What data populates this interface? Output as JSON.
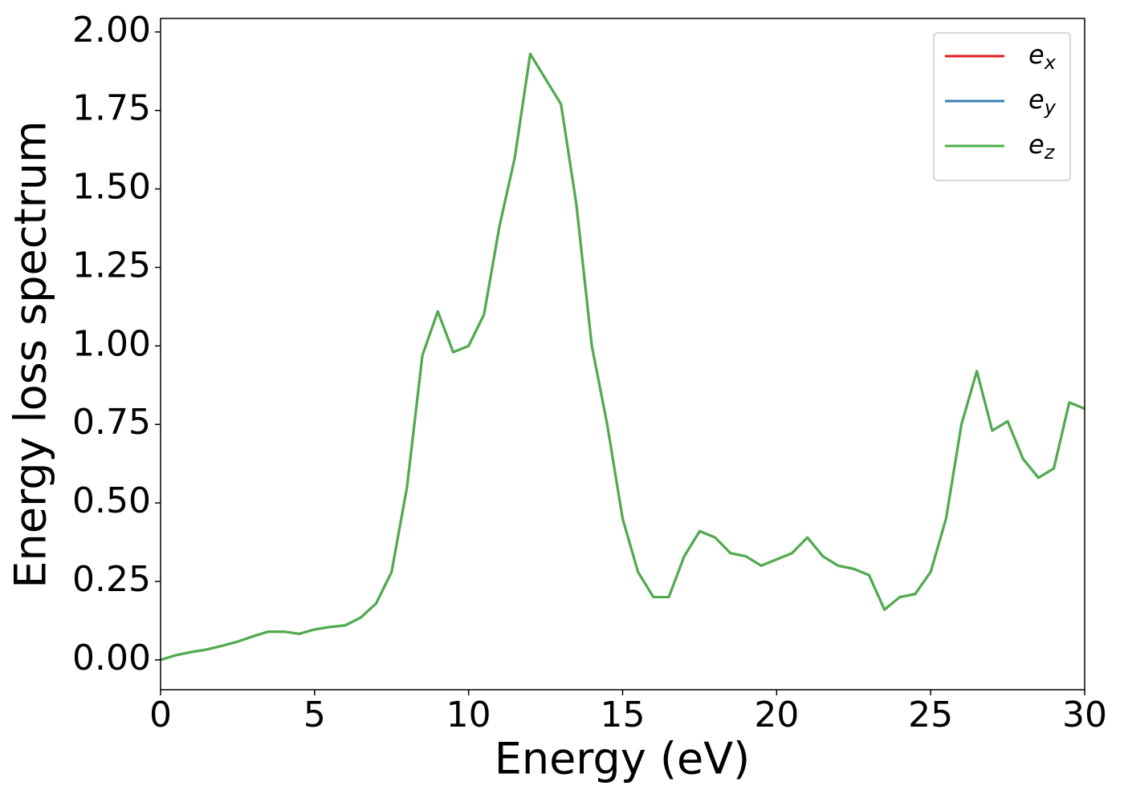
{
  "chart_data": {
    "type": "line",
    "xlabel": "Energy (eV)",
    "ylabel": "Energy loss spectrum",
    "x": [
      0,
      0.5,
      1,
      1.5,
      2,
      2.5,
      3,
      3.5,
      4,
      4.5,
      5,
      5.5,
      6,
      6.5,
      7,
      7.5,
      8,
      8.5,
      9,
      9.5,
      10,
      10.5,
      11,
      11.5,
      12,
      12.5,
      13,
      13.5,
      14,
      14.5,
      15,
      15.5,
      16,
      16.5,
      17,
      17.5,
      18,
      18.5,
      19,
      19.5,
      20,
      20.5,
      21,
      21.5,
      22,
      22.5,
      23,
      23.5,
      24,
      24.5,
      25,
      25.5,
      26,
      26.5,
      27,
      27.5,
      28,
      28.5,
      29,
      29.5,
      30
    ],
    "series": [
      {
        "name": "ex",
        "color": "#e41a1c",
        "values": [
          0,
          0.015,
          0.025,
          0.033,
          0.045,
          0.058,
          0.075,
          0.09,
          0.09,
          0.083,
          0.097,
          0.105,
          0.11,
          0.135,
          0.18,
          0.28,
          0.55,
          0.97,
          1.11,
          0.98,
          1.0,
          1.1,
          1.38,
          1.6,
          1.93,
          1.85,
          1.77,
          1.45,
          1.0,
          0.75,
          0.45,
          0.28,
          0.2,
          0.2,
          0.33,
          0.41,
          0.39,
          0.34,
          0.33,
          0.3,
          0.32,
          0.34,
          0.39,
          0.33,
          0.3,
          0.29,
          0.27,
          0.16,
          0.2,
          0.21,
          0.28,
          0.45,
          0.75,
          0.92,
          0.73,
          0.76,
          0.64,
          0.58,
          0.61,
          0.82,
          0.8
        ]
      },
      {
        "name": "ey",
        "color": "#377eb8",
        "values": [
          0,
          0.015,
          0.025,
          0.033,
          0.045,
          0.058,
          0.075,
          0.09,
          0.09,
          0.083,
          0.097,
          0.105,
          0.11,
          0.135,
          0.18,
          0.28,
          0.55,
          0.97,
          1.11,
          0.98,
          1.0,
          1.1,
          1.38,
          1.6,
          1.93,
          1.85,
          1.77,
          1.45,
          1.0,
          0.75,
          0.45,
          0.28,
          0.2,
          0.2,
          0.33,
          0.41,
          0.39,
          0.34,
          0.33,
          0.3,
          0.32,
          0.34,
          0.39,
          0.33,
          0.3,
          0.29,
          0.27,
          0.16,
          0.2,
          0.21,
          0.28,
          0.45,
          0.75,
          0.92,
          0.73,
          0.76,
          0.64,
          0.58,
          0.61,
          0.82,
          0.8
        ]
      },
      {
        "name": "ez",
        "color": "#4daf4a",
        "values": [
          0,
          0.015,
          0.025,
          0.033,
          0.045,
          0.058,
          0.075,
          0.09,
          0.09,
          0.083,
          0.097,
          0.105,
          0.11,
          0.135,
          0.18,
          0.28,
          0.55,
          0.97,
          1.11,
          0.98,
          1.0,
          1.1,
          1.38,
          1.6,
          1.93,
          1.85,
          1.77,
          1.45,
          1.0,
          0.75,
          0.45,
          0.28,
          0.2,
          0.2,
          0.33,
          0.41,
          0.39,
          0.34,
          0.33,
          0.3,
          0.32,
          0.34,
          0.39,
          0.33,
          0.3,
          0.29,
          0.27,
          0.16,
          0.2,
          0.21,
          0.28,
          0.45,
          0.75,
          0.92,
          0.73,
          0.76,
          0.64,
          0.58,
          0.61,
          0.82,
          0.8
        ]
      }
    ],
    "xlim": [
      0,
      30
    ],
    "xticks": [
      0,
      5,
      10,
      15,
      20,
      25,
      30
    ],
    "ylim": [
      -0.095,
      2.043
    ],
    "yticks": [
      {
        "value": 0,
        "label": "0.00"
      },
      {
        "value": 0.25,
        "label": "0.25"
      },
      {
        "value": 0.5,
        "label": "0.50"
      },
      {
        "value": 0.75,
        "label": "0.75"
      },
      {
        "value": 1,
        "label": "1.00"
      },
      {
        "value": 1.25,
        "label": "1.25"
      },
      {
        "value": 1.5,
        "label": "1.50"
      },
      {
        "value": 1.75,
        "label": "1.75"
      },
      {
        "value": 2,
        "label": "2.00"
      }
    ],
    "grid": false,
    "legend": "upper right"
  }
}
